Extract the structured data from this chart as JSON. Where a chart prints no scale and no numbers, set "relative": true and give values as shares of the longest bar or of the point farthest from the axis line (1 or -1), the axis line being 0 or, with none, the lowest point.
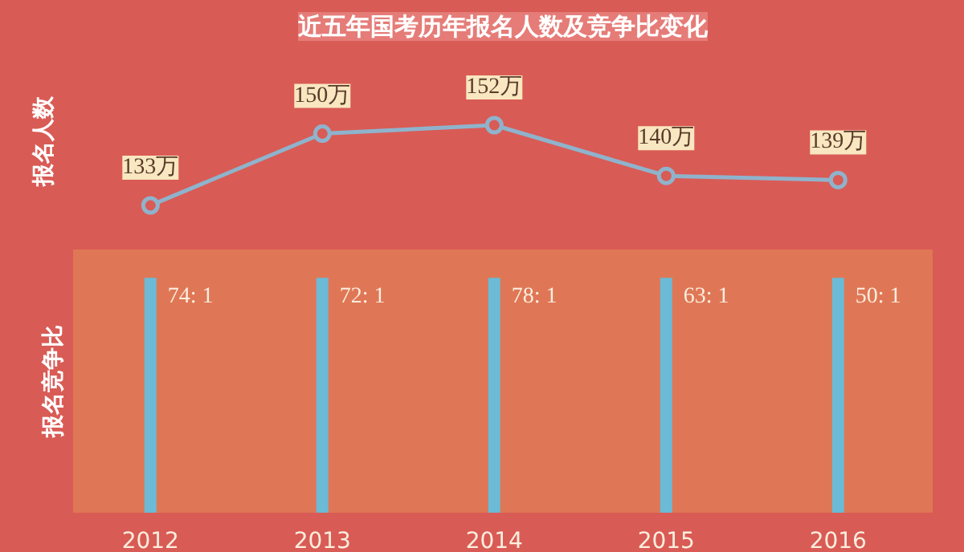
{
  "chart_data": [
    {
      "type": "line",
      "title": "近五年国考历年报名人数及竞争比变化",
      "ylabel": "报名人数",
      "categories": [
        "2012",
        "2013",
        "2014",
        "2015",
        "2016"
      ],
      "values": [
        133,
        150,
        152,
        140,
        139
      ],
      "value_labels": [
        "133万",
        "150万",
        "152万",
        "140万",
        "139万"
      ],
      "color": "#8fb3cc",
      "marker": "circle",
      "tick_labels": false
    },
    {
      "type": "bar",
      "ylabel": "报名竞争比",
      "categories": [
        "2012",
        "2013",
        "2014",
        "2015",
        "2016"
      ],
      "relative": true,
      "values": [
        1,
        1,
        1,
        1,
        1
      ],
      "annotations": [
        {
          "text": "74: 1",
          "x": "2012"
        },
        {
          "text": "72: 1",
          "x": "2013"
        },
        {
          "text": "78: 1",
          "x": "2014"
        },
        {
          "text": "63: 1",
          "x": "2015"
        },
        {
          "text": "50: 1",
          "x": "2016"
        }
      ],
      "color": "#6bbad6",
      "tick_labels": "x"
    }
  ]
}
